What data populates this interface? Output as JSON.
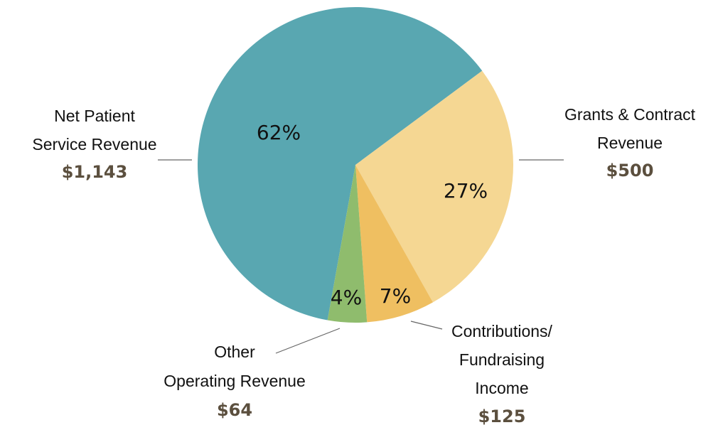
{
  "chart_data": {
    "type": "pie",
    "categories": [
      [
        "Net Patient",
        "Service Revenue"
      ],
      [
        "Grants & Contract",
        "Revenue"
      ],
      [
        "Contributions/",
        "Fundraising",
        "Income"
      ],
      [
        "Other",
        "Operating Revenue"
      ]
    ],
    "values": [
      62,
      27,
      7,
      4
    ],
    "value_labels": [
      "62%",
      "27%",
      "7%",
      "4%"
    ],
    "amounts": [
      1143,
      500,
      125,
      64
    ],
    "amount_labels": [
      "$1,143",
      "$500",
      "$125",
      "$64"
    ],
    "colors": [
      "#59a7b1",
      "#f5d793",
      "#efbf61",
      "#8fbc6d"
    ]
  }
}
